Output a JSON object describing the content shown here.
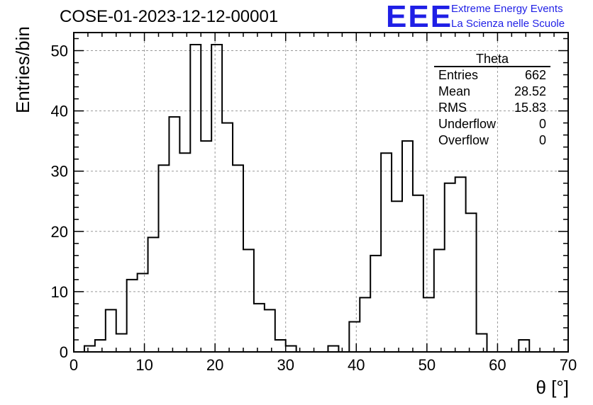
{
  "chart_data": {
    "type": "histogram",
    "title": "COSE-01-2023-12-12-00001",
    "xlabel": "θ [°]",
    "ylabel": "Entries/bin",
    "xlim": [
      0,
      70
    ],
    "ylim": [
      0,
      53
    ],
    "x_ticks": [
      0,
      10,
      20,
      30,
      40,
      50,
      60,
      70
    ],
    "y_ticks": [
      0,
      10,
      20,
      30,
      40,
      50
    ],
    "grid": true,
    "bin_width": 1.5,
    "bins": [
      {
        "x0": 1.5,
        "count": 1
      },
      {
        "x0": 3.0,
        "count": 2
      },
      {
        "x0": 4.5,
        "count": 7
      },
      {
        "x0": 6.0,
        "count": 3
      },
      {
        "x0": 7.5,
        "count": 12
      },
      {
        "x0": 9.0,
        "count": 13
      },
      {
        "x0": 10.5,
        "count": 19
      },
      {
        "x0": 12.0,
        "count": 31
      },
      {
        "x0": 13.5,
        "count": 39
      },
      {
        "x0": 15.0,
        "count": 33
      },
      {
        "x0": 16.5,
        "count": 51
      },
      {
        "x0": 18.0,
        "count": 35
      },
      {
        "x0": 19.5,
        "count": 51
      },
      {
        "x0": 21.0,
        "count": 38
      },
      {
        "x0": 22.5,
        "count": 31
      },
      {
        "x0": 24.0,
        "count": 17
      },
      {
        "x0": 25.5,
        "count": 8
      },
      {
        "x0": 27.0,
        "count": 7
      },
      {
        "x0": 28.5,
        "count": 2
      },
      {
        "x0": 30.0,
        "count": 1
      },
      {
        "x0": 31.5,
        "count": 0
      },
      {
        "x0": 33.0,
        "count": 0
      },
      {
        "x0": 34.5,
        "count": 0
      },
      {
        "x0": 36.0,
        "count": 1
      },
      {
        "x0": 37.5,
        "count": 0
      },
      {
        "x0": 39.0,
        "count": 5
      },
      {
        "x0": 40.5,
        "count": 9
      },
      {
        "x0": 42.0,
        "count": 16
      },
      {
        "x0": 43.5,
        "count": 33
      },
      {
        "x0": 45.0,
        "count": 25
      },
      {
        "x0": 46.5,
        "count": 35
      },
      {
        "x0": 48.0,
        "count": 26
      },
      {
        "x0": 49.5,
        "count": 9
      },
      {
        "x0": 51.0,
        "count": 17
      },
      {
        "x0": 52.5,
        "count": 28
      },
      {
        "x0": 54.0,
        "count": 29
      },
      {
        "x0": 55.5,
        "count": 23
      },
      {
        "x0": 57.0,
        "count": 3
      },
      {
        "x0": 58.5,
        "count": 0
      },
      {
        "x0": 60.0,
        "count": 0
      },
      {
        "x0": 61.5,
        "count": 0
      },
      {
        "x0": 63.0,
        "count": 2
      }
    ],
    "stats_box": {
      "name": "Theta",
      "rows": [
        {
          "label": "Entries",
          "value": "662"
        },
        {
          "label": "Mean",
          "value": "28.52"
        },
        {
          "label": "RMS",
          "value": "15.83"
        },
        {
          "label": "Underflow",
          "value": "0"
        },
        {
          "label": "Overflow",
          "value": "0"
        }
      ]
    }
  },
  "branding": {
    "logo": "EEE",
    "line1": "Extreme Energy Events",
    "line2": "La Scienza nelle Scuole",
    "color": "#1f1fe6"
  }
}
